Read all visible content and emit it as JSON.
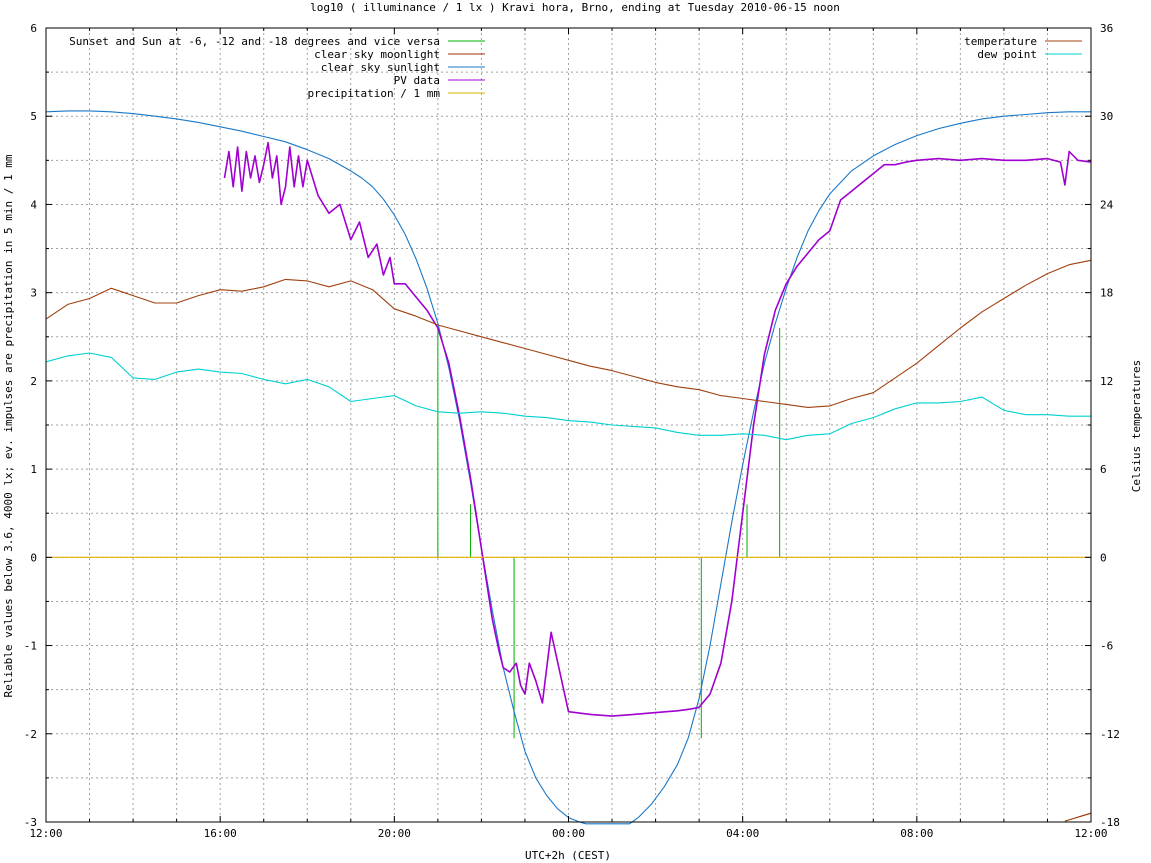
{
  "chart_data": {
    "type": "line",
    "title": "log10 ( illuminance / 1 lx ) Kravi hora, Brno, ending at Tuesday 2010-06-15 noon",
    "xlabel": "UTC+2h (CEST)",
    "ylabel": "Reliable values below 3.6, 4000 lx; ev. impulses are precipitation in 5 min / 1 mm",
    "y2label": "Celsius temperatures",
    "xlim": [
      12,
      36
    ],
    "ylim": [
      -3,
      6
    ],
    "y2lim": [
      -18,
      36
    ],
    "grid": true,
    "x_ticks": [
      {
        "x": 12,
        "label": "12:00"
      },
      {
        "x": 16,
        "label": "16:00"
      },
      {
        "x": 20,
        "label": "20:00"
      },
      {
        "x": 24,
        "label": "00:00"
      },
      {
        "x": 28,
        "label": "04:00"
      },
      {
        "x": 32,
        "label": "08:00"
      },
      {
        "x": 36,
        "label": "12:00"
      }
    ],
    "y_ticks": [
      "-3",
      "-2",
      "-1",
      "0",
      "1",
      "2",
      "3",
      "4",
      "5",
      "6"
    ],
    "y2_ticks": [
      "-18",
      "-12",
      "-6",
      "0",
      "6",
      "12",
      "18",
      "24",
      "30",
      "36"
    ],
    "legend_left": [
      {
        "name": "Sunset and Sun at -6, -12 and -18 degrees and vice versa",
        "color": "#00b000"
      },
      {
        "name": "clear sky moonlight",
        "color": "#a03000"
      },
      {
        "name": "clear sky sunlight",
        "color": "#1a78c8"
      },
      {
        "name": "PV data",
        "color": "#a000d0"
      },
      {
        "name": "precipitation / 1 mm",
        "color": "#e0b000"
      }
    ],
    "legend_right": [
      {
        "name": "temperature",
        "color": "#a04010"
      },
      {
        "name": "dew point",
        "color": "#00d0d0"
      }
    ],
    "series": [
      {
        "name": "clear sky sunlight",
        "color": "#1a78c8",
        "axis": "y",
        "x": [
          12,
          12.5,
          13,
          13.5,
          14,
          14.5,
          15,
          15.5,
          16,
          16.5,
          17,
          17.5,
          18,
          18.5,
          19,
          19.25,
          19.5,
          19.75,
          20,
          20.25,
          20.5,
          20.75,
          21,
          21.25,
          21.5,
          21.75,
          22,
          22.25,
          22.5,
          22.75,
          23,
          23.25,
          23.5,
          23.75,
          24,
          24.25,
          24.4,
          25.4,
          25.6,
          25.9,
          26.2,
          26.5,
          26.75,
          27,
          27.25,
          27.5,
          27.75,
          28,
          28.25,
          28.5,
          28.75,
          29,
          29.25,
          29.5,
          29.75,
          30,
          30.5,
          31,
          31.5,
          32,
          32.5,
          33,
          33.5,
          34,
          34.5,
          35,
          35.5,
          36
        ],
        "values": [
          5.05,
          5.06,
          5.06,
          5.05,
          5.03,
          5.0,
          4.97,
          4.93,
          4.88,
          4.83,
          4.77,
          4.71,
          4.62,
          4.52,
          4.38,
          4.3,
          4.2,
          4.06,
          3.88,
          3.66,
          3.38,
          3.05,
          2.65,
          2.15,
          1.55,
          0.85,
          0.1,
          -0.6,
          -1.25,
          -1.75,
          -2.2,
          -2.5,
          -2.7,
          -2.85,
          -2.95,
          -3.0,
          -3.02,
          -3.02,
          -2.95,
          -2.8,
          -2.6,
          -2.35,
          -2.05,
          -1.6,
          -1.0,
          -0.3,
          0.4,
          1.05,
          1.65,
          2.2,
          2.65,
          3.05,
          3.4,
          3.7,
          3.93,
          4.12,
          4.38,
          4.55,
          4.68,
          4.78,
          4.86,
          4.92,
          4.97,
          5.0,
          5.02,
          5.04,
          5.05,
          5.05
        ]
      },
      {
        "name": "PV data",
        "color": "#a000d0",
        "axis": "y",
        "x": [
          16.1,
          16.2,
          16.3,
          16.4,
          16.5,
          16.6,
          16.7,
          16.8,
          16.9,
          17.0,
          17.1,
          17.2,
          17.3,
          17.4,
          17.5,
          17.6,
          17.7,
          17.8,
          17.9,
          18.0,
          18.25,
          18.5,
          18.75,
          19.0,
          19.1,
          19.2,
          19.4,
          19.6,
          19.75,
          19.9,
          20.0,
          20.25,
          20.5,
          20.75,
          21.0,
          21.25,
          21.5,
          21.75,
          22.0,
          22.25,
          22.4,
          22.5,
          22.65,
          22.8,
          22.9,
          23.0,
          23.1,
          23.25,
          23.4,
          23.6,
          24.0,
          24.5,
          25.0,
          25.5,
          26.0,
          26.5,
          26.8,
          27.0,
          27.25,
          27.5,
          27.75,
          28.0,
          28.25,
          28.5,
          28.75,
          29.0,
          29.25,
          29.5,
          29.75,
          30.0,
          30.25,
          30.5,
          30.75,
          31.0,
          31.25,
          31.5,
          31.75,
          32.0,
          32.5,
          33.0,
          33.5,
          34.0,
          34.5,
          35.0,
          35.3,
          35.4,
          35.5,
          35.7,
          36.0
        ],
        "values": [
          4.3,
          4.6,
          4.2,
          4.65,
          4.15,
          4.6,
          4.3,
          4.55,
          4.25,
          4.45,
          4.7,
          4.3,
          4.55,
          4.0,
          4.2,
          4.65,
          4.2,
          4.55,
          4.2,
          4.5,
          4.1,
          3.9,
          4.0,
          3.6,
          3.7,
          3.8,
          3.4,
          3.55,
          3.2,
          3.4,
          3.1,
          3.1,
          2.95,
          2.8,
          2.6,
          2.2,
          1.6,
          0.9,
          0.1,
          -0.7,
          -1.05,
          -1.25,
          -1.3,
          -1.2,
          -1.45,
          -1.55,
          -1.2,
          -1.4,
          -1.65,
          -0.85,
          -1.75,
          -1.78,
          -1.8,
          -1.78,
          -1.76,
          -1.74,
          -1.72,
          -1.7,
          -1.55,
          -1.2,
          -0.5,
          0.5,
          1.5,
          2.3,
          2.8,
          3.1,
          3.3,
          3.45,
          3.6,
          3.7,
          4.05,
          4.15,
          4.25,
          4.35,
          4.45,
          4.45,
          4.48,
          4.5,
          4.52,
          4.5,
          4.52,
          4.5,
          4.5,
          4.52,
          4.48,
          4.22,
          4.6,
          4.5,
          4.48
        ]
      },
      {
        "name": "temperature",
        "color": "#a04010",
        "axis": "y2",
        "x": [
          12,
          12.5,
          13,
          13.5,
          14,
          14.5,
          15,
          15.5,
          16,
          16.5,
          17,
          17.5,
          18,
          18.5,
          19,
          19.5,
          20,
          20.5,
          21,
          21.5,
          22,
          22.5,
          23,
          23.5,
          24,
          24.5,
          25,
          25.5,
          26,
          26.5,
          27,
          27.5,
          28,
          28.5,
          29,
          29.5,
          30,
          30.5,
          31,
          31.5,
          32,
          32.5,
          33,
          33.5,
          34,
          34.5,
          35,
          35.5,
          36
        ],
        "values": [
          16.2,
          17.2,
          17.6,
          18.3,
          17.8,
          17.3,
          17.3,
          17.8,
          18.2,
          18.1,
          18.4,
          18.9,
          18.8,
          18.4,
          18.8,
          18.2,
          16.9,
          16.4,
          15.8,
          15.4,
          15.0,
          14.6,
          14.2,
          13.8,
          13.4,
          13.0,
          12.7,
          12.3,
          11.9,
          11.6,
          11.4,
          11.0,
          10.8,
          10.6,
          10.4,
          10.2,
          10.3,
          10.8,
          11.2,
          12.2,
          13.2,
          14.4,
          15.6,
          16.7,
          17.6,
          18.5,
          19.3,
          19.9,
          20.2
        ]
      },
      {
        "name": "dew point",
        "color": "#00d0d0",
        "axis": "y2",
        "x": [
          12,
          12.5,
          13,
          13.5,
          14,
          14.5,
          15,
          15.5,
          16,
          16.5,
          17,
          17.5,
          18,
          18.5,
          19,
          19.5,
          20,
          20.5,
          21,
          21.5,
          22,
          22.5,
          23,
          23.5,
          24,
          24.5,
          25,
          25.5,
          26,
          26.5,
          27,
          27.5,
          28,
          28.5,
          29,
          29.5,
          30,
          30.5,
          31,
          31.5,
          32,
          32.5,
          33,
          33.5,
          34,
          34.5,
          35,
          35.5,
          36
        ],
        "values": [
          13.3,
          13.7,
          13.9,
          13.6,
          12.2,
          12.1,
          12.6,
          12.8,
          12.6,
          12.5,
          12.1,
          11.8,
          12.1,
          11.6,
          10.6,
          10.8,
          11.0,
          10.3,
          9.9,
          9.8,
          9.9,
          9.8,
          9.6,
          9.5,
          9.3,
          9.2,
          9.0,
          8.9,
          8.8,
          8.5,
          8.3,
          8.3,
          8.4,
          8.3,
          8.0,
          8.3,
          8.4,
          9.1,
          9.5,
          10.1,
          10.5,
          10.5,
          10.6,
          10.9,
          10.0,
          9.7,
          9.7,
          9.6,
          9.6
        ]
      },
      {
        "name": "precipitation / 1 mm",
        "color": "#e0b000",
        "axis": "y",
        "x": [
          12,
          36
        ],
        "values": [
          0,
          0
        ]
      },
      {
        "name": "clear sky moonlight",
        "color": "#a03000",
        "axis": "y",
        "x": [
          35.4,
          35.6,
          35.8,
          36
        ],
        "values": [
          -2.99,
          -2.96,
          -2.93,
          -2.9
        ]
      }
    ],
    "impulses": {
      "name": "Sunset and Sun at -6, -12 and -18 degrees and vice versa",
      "color": "#00b000",
      "x": [
        21.0,
        21.75,
        22.75,
        27.05,
        28.1,
        28.85
      ],
      "values": [
        2.6,
        0.6,
        -2.05,
        -2.05,
        0.6,
        2.6
      ]
    }
  }
}
